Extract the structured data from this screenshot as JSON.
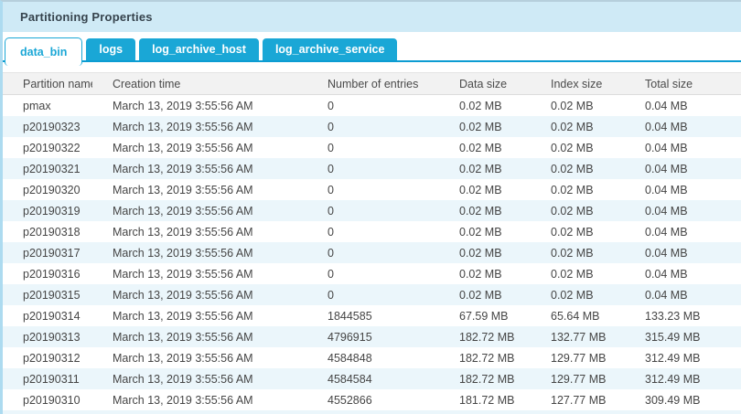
{
  "panel": {
    "title": "Partitioning Properties"
  },
  "tabs": [
    {
      "label": "data_bin",
      "active": true
    },
    {
      "label": "logs",
      "active": false
    },
    {
      "label": "log_archive_host",
      "active": false
    },
    {
      "label": "log_archive_service",
      "active": false
    }
  ],
  "table": {
    "columns": [
      "Partition name",
      "Creation time",
      "Number of entries",
      "Data size",
      "Index size",
      "Total size"
    ],
    "rows": [
      [
        "pmax",
        "March 13, 2019 3:55:56 AM",
        "0",
        "0.02 MB",
        "0.02 MB",
        "0.04 MB"
      ],
      [
        "p20190323",
        "March 13, 2019 3:55:56 AM",
        "0",
        "0.02 MB",
        "0.02 MB",
        "0.04 MB"
      ],
      [
        "p20190322",
        "March 13, 2019 3:55:56 AM",
        "0",
        "0.02 MB",
        "0.02 MB",
        "0.04 MB"
      ],
      [
        "p20190321",
        "March 13, 2019 3:55:56 AM",
        "0",
        "0.02 MB",
        "0.02 MB",
        "0.04 MB"
      ],
      [
        "p20190320",
        "March 13, 2019 3:55:56 AM",
        "0",
        "0.02 MB",
        "0.02 MB",
        "0.04 MB"
      ],
      [
        "p20190319",
        "March 13, 2019 3:55:56 AM",
        "0",
        "0.02 MB",
        "0.02 MB",
        "0.04 MB"
      ],
      [
        "p20190318",
        "March 13, 2019 3:55:56 AM",
        "0",
        "0.02 MB",
        "0.02 MB",
        "0.04 MB"
      ],
      [
        "p20190317",
        "March 13, 2019 3:55:56 AM",
        "0",
        "0.02 MB",
        "0.02 MB",
        "0.04 MB"
      ],
      [
        "p20190316",
        "March 13, 2019 3:55:56 AM",
        "0",
        "0.02 MB",
        "0.02 MB",
        "0.04 MB"
      ],
      [
        "p20190315",
        "March 13, 2019 3:55:56 AM",
        "0",
        "0.02 MB",
        "0.02 MB",
        "0.04 MB"
      ],
      [
        "p20190314",
        "March 13, 2019 3:55:56 AM",
        "1844585",
        "67.59 MB",
        "65.64 MB",
        "133.23 MB"
      ],
      [
        "p20190313",
        "March 13, 2019 3:55:56 AM",
        "4796915",
        "182.72 MB",
        "132.77 MB",
        "315.49 MB"
      ],
      [
        "p20190312",
        "March 13, 2019 3:55:56 AM",
        "4584848",
        "182.72 MB",
        "129.77 MB",
        "312.49 MB"
      ],
      [
        "p20190311",
        "March 13, 2019 3:55:56 AM",
        "4584584",
        "182.72 MB",
        "129.77 MB",
        "312.49 MB"
      ],
      [
        "p20190310",
        "March 13, 2019 3:55:56 AM",
        "4552866",
        "181.72 MB",
        "127.77 MB",
        "309.49 MB"
      ]
    ],
    "partial_row_visible": true
  },
  "colors": {
    "accent": "#1aa7d6",
    "tab_underline": "#0c9cd2",
    "titlebar_bg": "#cfeaf6",
    "panel_border": "#addbf0",
    "table_header_bg": "#f2f2f2",
    "alt_row_bg": "#ebf6fb"
  }
}
